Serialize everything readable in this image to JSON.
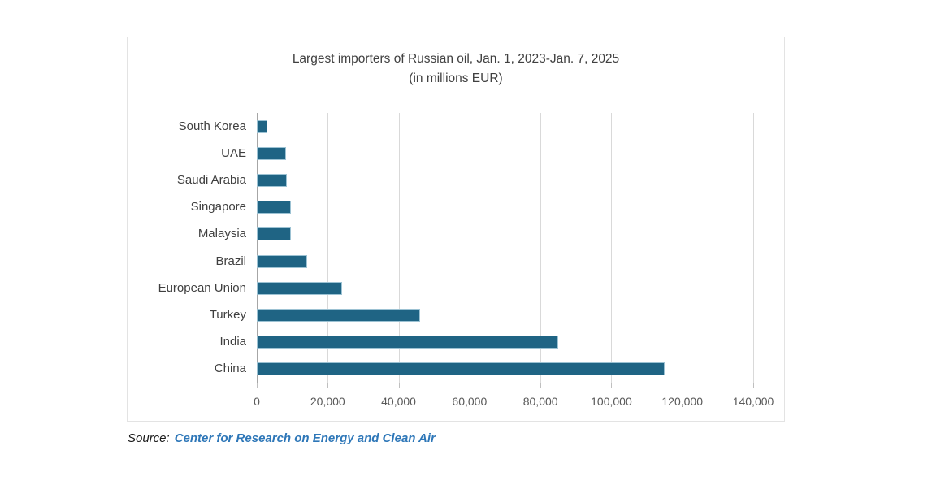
{
  "chart": {
    "title_line1": "Largest importers of Russian oil, Jan. 1, 2023-Jan. 7, 2025",
    "title_line2": "(in millions EUR)",
    "source_prefix": "Source:",
    "source_link": "Center for Research on Energy and Clean Air"
  },
  "chart_data": {
    "type": "bar",
    "orientation": "horizontal",
    "title": "Largest importers of Russian oil, Jan. 1, 2023-Jan. 7, 2025 (in millions EUR)",
    "categories": [
      "South Korea",
      "UAE",
      "Saudi Arabia",
      "Singapore",
      "Malaysia",
      "Brazil",
      "European Union",
      "Turkey",
      "India",
      "China"
    ],
    "values": [
      3000,
      8300,
      8500,
      9600,
      9600,
      14200,
      24000,
      46000,
      85000,
      115000
    ],
    "xlim": [
      0,
      140000
    ],
    "x_tick_values": [
      0,
      20000,
      40000,
      60000,
      80000,
      100000,
      120000,
      140000
    ],
    "x_tick_labels": [
      "0",
      "20,000",
      "40,000",
      "60,000",
      "80,000",
      "100,000",
      "120,000",
      "140,000"
    ],
    "grid": true,
    "legend": "none",
    "bar_color": "#1f6484"
  }
}
